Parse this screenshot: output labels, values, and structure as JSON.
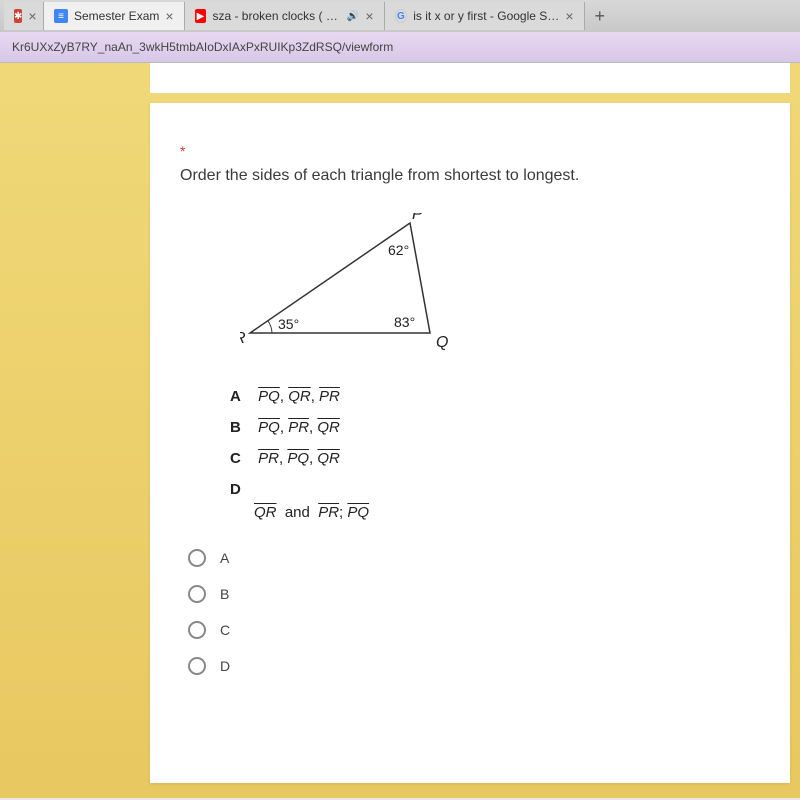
{
  "tabs": [
    {
      "title": "",
      "icon": "red"
    },
    {
      "title": "Semester Exam",
      "icon": "blue"
    },
    {
      "title": "sza - broken clocks ( slowed",
      "icon": "yt"
    },
    {
      "title": "is it x or y first - Google Search",
      "icon": "g"
    }
  ],
  "url": "Kr6UXxZyB7RY_naAn_3wkH5tmbAIoDxIAxPxRUIKp3ZdRSQ/viewform",
  "question": "Order the sides of each triangle from shortest to longest.",
  "triangle": {
    "vertices": {
      "P": "P",
      "Q": "Q",
      "R": "R"
    },
    "angles": {
      "P": "62°",
      "Q": "83°",
      "R": "35°"
    },
    "points": {
      "R": [
        10,
        120
      ],
      "Q": [
        190,
        120
      ],
      "P": [
        170,
        10
      ]
    },
    "stroke": "#333",
    "stroke_width": 1.5,
    "font_size": 16,
    "angle_font_size": 14
  },
  "choices": [
    {
      "label": "A",
      "html": "<span class=\"overline\">PQ</span>, <span class=\"overline\">QR</span>, <span class=\"overline\">PR</span>"
    },
    {
      "label": "B",
      "html": "<span class=\"overline\">PQ</span>, <span class=\"overline\">PR</span>, <span class=\"overline\">QR</span>"
    },
    {
      "label": "C",
      "html": "<span class=\"overline\">PR</span>, <span class=\"overline\">PQ</span>, <span class=\"overline\">QR</span>"
    },
    {
      "label": "D",
      "html": "<span class=\"overline\">QR</span> &nbsp;and&nbsp; <span class=\"overline\">PR</span>; <span class=\"overline\">PQ</span>"
    }
  ],
  "radio_options": [
    "A",
    "B",
    "C",
    "D"
  ],
  "close_glyph": "×",
  "plus_glyph": "+",
  "sound_glyph": "🔊",
  "required_glyph": "*"
}
